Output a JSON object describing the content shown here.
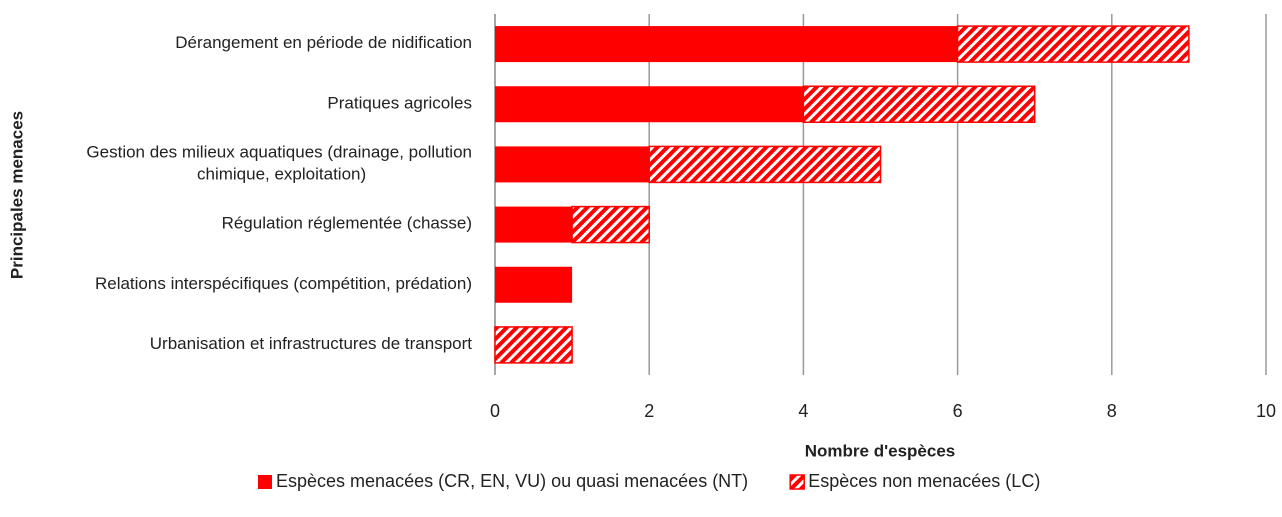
{
  "chart_data": {
    "type": "stacked_barh",
    "x_label": "Nombre d'espèces",
    "y_label": "Principales menaces",
    "categories": [
      "Dérangement en période de nidification",
      "Pratiques agricoles",
      "Gestion des milieux aquatiques (drainage, pollution chimique, exploitation)",
      "Régulation réglementée (chasse)",
      "Relations interspécifiques (compétition, prédation)",
      "Urbanisation et infrastructures de transport"
    ],
    "series": [
      {
        "name": "Espèces menacées (CR, EN, VU) ou quasi menacées (NT)",
        "color": "#ff0000",
        "pattern": "solid",
        "values": [
          6,
          4,
          2,
          1,
          1,
          0
        ]
      },
      {
        "name": "Espèces non menacées (LC)",
        "color": "#ff0000",
        "pattern": "hatch",
        "values": [
          3,
          3,
          3,
          1,
          0,
          1
        ]
      }
    ],
    "xlim": [
      0,
      10
    ],
    "xticks": [
      0,
      2,
      4,
      6,
      8,
      10
    ],
    "grid": true,
    "legend": "bottom"
  }
}
